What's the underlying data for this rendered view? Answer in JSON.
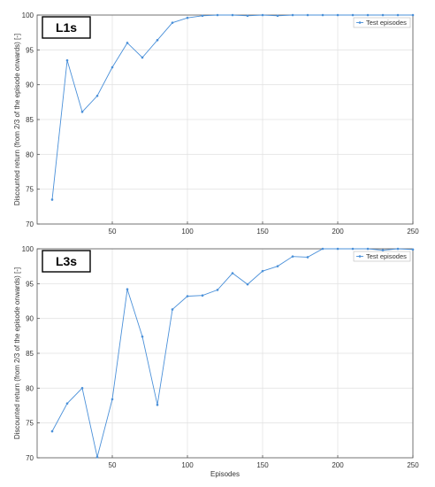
{
  "chart_data": [
    {
      "type": "line",
      "tag": "L1s",
      "xlabel": "",
      "ylabel": "Discounted return (from 2/3 of the episode onwards) [-]",
      "xlim": [
        0,
        250
      ],
      "ylim": [
        70,
        100
      ],
      "xticks": [
        50,
        100,
        150,
        200,
        250
      ],
      "yticks": [
        70,
        75,
        80,
        85,
        90,
        95,
        100
      ],
      "grid": true,
      "legend_position": "top-right",
      "series": [
        {
          "name": "Test episodes",
          "color": "#4a90d9",
          "marker": "dot",
          "x": [
            10,
            20,
            30,
            40,
            50,
            60,
            70,
            80,
            90,
            100,
            110,
            120,
            130,
            140,
            150,
            160,
            170,
            180,
            190,
            200,
            210,
            220,
            230,
            240,
            250
          ],
          "y": [
            73.5,
            93.5,
            86.1,
            88.4,
            92.5,
            96.0,
            93.9,
            96.4,
            98.9,
            99.6,
            99.9,
            100.0,
            100.0,
            99.9,
            100.0,
            99.9,
            100.0,
            100.0,
            100.0,
            100.0,
            100.0,
            100.0,
            100.0,
            100.0,
            100.0
          ]
        }
      ]
    },
    {
      "type": "line",
      "tag": "L3s",
      "xlabel": "Episodes",
      "ylabel": "Discounted return (from 2/3 of the episode onwards) [-]",
      "xlim": [
        0,
        250
      ],
      "ylim": [
        70,
        100
      ],
      "xticks": [
        50,
        100,
        150,
        200,
        250
      ],
      "yticks": [
        70,
        75,
        80,
        85,
        90,
        95,
        100
      ],
      "grid": true,
      "legend_position": "top-right",
      "series": [
        {
          "name": "Test episodes",
          "color": "#4a90d9",
          "marker": "dot",
          "x": [
            10,
            20,
            30,
            40,
            50,
            60,
            70,
            80,
            90,
            100,
            110,
            120,
            130,
            140,
            150,
            160,
            170,
            180,
            190,
            200,
            210,
            220,
            230,
            240,
            250
          ],
          "y": [
            73.8,
            77.8,
            80.0,
            70.1,
            78.4,
            94.2,
            87.4,
            77.6,
            91.3,
            93.2,
            93.3,
            94.1,
            96.5,
            94.9,
            96.8,
            97.5,
            98.9,
            98.8,
            100.0,
            100.0,
            100.0,
            100.0,
            99.8,
            100.0,
            99.9
          ]
        }
      ]
    }
  ]
}
